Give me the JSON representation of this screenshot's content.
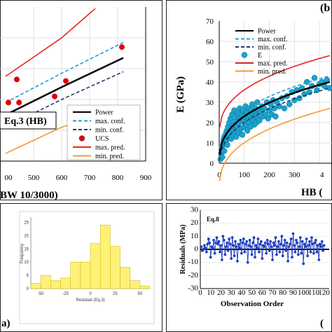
{
  "chart_data": [
    {
      "type": "scatter",
      "panel": "top-left",
      "xlabel": "BW 10/3000)",
      "xticks": [
        "00",
        "500",
        "600",
        "700",
        "800",
        "900"
      ],
      "xlim": [
        400,
        900
      ],
      "ylim": [
        0,
        100
      ],
      "label_box": "Eq.3 (HB)",
      "legend": [
        "Power",
        "max. conf.",
        "min. conf.",
        "UCS",
        "max. pred.",
        "min. pred."
      ],
      "points": [
        {
          "x": 410,
          "y": 38
        },
        {
          "x": 440,
          "y": 53
        },
        {
          "x": 448,
          "y": 38
        },
        {
          "x": 575,
          "y": 42
        },
        {
          "x": 615,
          "y": 52
        },
        {
          "x": 815,
          "y": 74
        }
      ],
      "series": [
        {
          "name": "Power",
          "color": "#000000",
          "style": "solid",
          "x": [
            400,
            600,
            820
          ],
          "y": [
            30,
            48,
            67
          ]
        },
        {
          "name": "max. conf.",
          "color": "#1f9bd7",
          "style": "dashed",
          "x": [
            400,
            600,
            820
          ],
          "y": [
            38,
            57,
            77
          ]
        },
        {
          "name": "min. conf.",
          "color": "#1f3b73",
          "style": "dashed",
          "x": [
            400,
            600,
            820
          ],
          "y": [
            22,
            40,
            58
          ]
        },
        {
          "name": "max. pred.",
          "color": "#e52323",
          "style": "solid",
          "x": [
            400,
            600,
            720
          ],
          "y": [
            55,
            80,
            99
          ]
        },
        {
          "name": "min. pred.",
          "color": "#f29a35",
          "style": "solid",
          "x": [
            400,
            600,
            820
          ],
          "y": [
            5,
            22,
            36
          ]
        }
      ]
    },
    {
      "type": "scatter",
      "panel": "top-right",
      "title": "(b",
      "xlabel": "HB (",
      "ylabel": "E (GPa)",
      "xticks": [
        "0",
        "100",
        "200",
        "300",
        "4"
      ],
      "yticks": [
        "0",
        "10",
        "20",
        "30",
        "40",
        "50",
        "60",
        "70"
      ],
      "xlim": [
        0,
        450
      ],
      "ylim": [
        0,
        70
      ],
      "legend": [
        "Power",
        "max. conf.",
        "min. conf.",
        "E",
        "max. pred.",
        "min. pred."
      ],
      "series": [
        {
          "name": "Power",
          "color": "#000000",
          "style": "solid"
        },
        {
          "name": "max. conf.",
          "color": "#1f9bd7",
          "style": "dashed"
        },
        {
          "name": "min. conf.",
          "color": "#1f3b73",
          "style": "dashed"
        },
        {
          "name": "max. pred.",
          "color": "#e52323",
          "style": "solid"
        },
        {
          "name": "min. pred.",
          "color": "#f29a35",
          "style": "solid"
        }
      ],
      "points": [
        {
          "x": 5,
          "y": 2
        },
        {
          "x": 8,
          "y": 5
        },
        {
          "x": 10,
          "y": 8
        },
        {
          "x": 12,
          "y": 3
        },
        {
          "x": 15,
          "y": 9
        },
        {
          "x": 18,
          "y": 12
        },
        {
          "x": 20,
          "y": 6
        },
        {
          "x": 22,
          "y": 10
        },
        {
          "x": 25,
          "y": 14
        },
        {
          "x": 28,
          "y": 11
        },
        {
          "x": 30,
          "y": 16
        },
        {
          "x": 32,
          "y": 9
        },
        {
          "x": 35,
          "y": 18
        },
        {
          "x": 38,
          "y": 13
        },
        {
          "x": 40,
          "y": 20
        },
        {
          "x": 42,
          "y": 15
        },
        {
          "x": 45,
          "y": 22
        },
        {
          "x": 48,
          "y": 12
        },
        {
          "x": 50,
          "y": 17
        },
        {
          "x": 52,
          "y": 24
        },
        {
          "x": 55,
          "y": 14
        },
        {
          "x": 58,
          "y": 19
        },
        {
          "x": 60,
          "y": 26
        },
        {
          "x": 62,
          "y": 16
        },
        {
          "x": 65,
          "y": 21
        },
        {
          "x": 68,
          "y": 13
        },
        {
          "x": 70,
          "y": 23
        },
        {
          "x": 72,
          "y": 18
        },
        {
          "x": 75,
          "y": 25
        },
        {
          "x": 78,
          "y": 15
        },
        {
          "x": 80,
          "y": 20
        },
        {
          "x": 82,
          "y": 27
        },
        {
          "x": 85,
          "y": 22
        },
        {
          "x": 88,
          "y": 17
        },
        {
          "x": 90,
          "y": 24
        },
        {
          "x": 92,
          "y": 14
        },
        {
          "x": 95,
          "y": 26
        },
        {
          "x": 98,
          "y": 21
        },
        {
          "x": 100,
          "y": 18
        },
        {
          "x": 102,
          "y": 23
        },
        {
          "x": 105,
          "y": 28
        },
        {
          "x": 108,
          "y": 19
        },
        {
          "x": 110,
          "y": 25
        },
        {
          "x": 112,
          "y": 16
        },
        {
          "x": 115,
          "y": 22
        },
        {
          "x": 118,
          "y": 27
        },
        {
          "x": 120,
          "y": 20
        },
        {
          "x": 122,
          "y": 24
        },
        {
          "x": 125,
          "y": 18
        },
        {
          "x": 128,
          "y": 26
        },
        {
          "x": 130,
          "y": 22
        },
        {
          "x": 132,
          "y": 29
        },
        {
          "x": 135,
          "y": 21
        },
        {
          "x": 138,
          "y": 25
        },
        {
          "x": 140,
          "y": 19
        },
        {
          "x": 142,
          "y": 23
        },
        {
          "x": 145,
          "y": 27
        },
        {
          "x": 148,
          "y": 20
        },
        {
          "x": 150,
          "y": 24
        },
        {
          "x": 152,
          "y": 30
        },
        {
          "x": 155,
          "y": 22
        },
        {
          "x": 158,
          "y": 26
        },
        {
          "x": 160,
          "y": 21
        },
        {
          "x": 165,
          "y": 25
        },
        {
          "x": 170,
          "y": 28
        },
        {
          "x": 175,
          "y": 23
        },
        {
          "x": 180,
          "y": 27
        },
        {
          "x": 185,
          "y": 24
        },
        {
          "x": 190,
          "y": 30
        },
        {
          "x": 195,
          "y": 22
        },
        {
          "x": 200,
          "y": 26
        },
        {
          "x": 205,
          "y": 29
        },
        {
          "x": 210,
          "y": 24
        },
        {
          "x": 215,
          "y": 31
        },
        {
          "x": 220,
          "y": 27
        },
        {
          "x": 225,
          "y": 23
        },
        {
          "x": 230,
          "y": 30
        },
        {
          "x": 240,
          "y": 28
        },
        {
          "x": 250,
          "y": 32
        },
        {
          "x": 260,
          "y": 27
        },
        {
          "x": 270,
          "y": 33
        },
        {
          "x": 280,
          "y": 29
        },
        {
          "x": 290,
          "y": 35
        },
        {
          "x": 300,
          "y": 31
        },
        {
          "x": 310,
          "y": 36
        },
        {
          "x": 320,
          "y": 32
        },
        {
          "x": 330,
          "y": 37
        },
        {
          "x": 340,
          "y": 34
        },
        {
          "x": 350,
          "y": 40
        },
        {
          "x": 360,
          "y": 35
        },
        {
          "x": 370,
          "y": 38
        },
        {
          "x": 380,
          "y": 42
        },
        {
          "x": 390,
          "y": 36
        },
        {
          "x": 400,
          "y": 39
        },
        {
          "x": 410,
          "y": 40
        },
        {
          "x": 420,
          "y": 38
        },
        {
          "x": 430,
          "y": 41
        },
        {
          "x": 440,
          "y": 37
        }
      ]
    },
    {
      "type": "bar",
      "panel": "bottom-left",
      "title": "a)",
      "xlabel": "Residual (Eq.3)",
      "ylabel": "Frequency",
      "xticks": [
        "-50",
        "-25",
        "0",
        "25",
        "50"
      ],
      "yticks": [
        "0",
        "5",
        "10",
        "15",
        "20",
        "25"
      ],
      "bin_edges": [
        -60,
        -50,
        -40,
        -30,
        -20,
        -10,
        0,
        10,
        20,
        30,
        40,
        50,
        60
      ],
      "values": [
        2,
        5,
        3,
        4,
        10,
        10,
        17,
        24,
        16,
        8,
        3,
        1
      ],
      "ylim": [
        0,
        27
      ]
    },
    {
      "type": "line",
      "panel": "bottom-right",
      "title": "Eq.8",
      "xlabel": "Observation Order",
      "ylabel": "Residuals (MPa)",
      "xticks": [
        "0",
        "10",
        "20",
        "30",
        "40",
        "50",
        "60",
        "70",
        "80",
        "90",
        "100",
        "110",
        "120"
      ],
      "yticks": [
        "-30",
        "-20",
        "-10",
        "0",
        "10",
        "20",
        "30"
      ],
      "ylim": [
        -30,
        30
      ],
      "xlim": [
        0,
        125
      ],
      "values": [
        2,
        -1,
        0,
        3,
        1,
        -2,
        4,
        8,
        5,
        -6,
        2,
        1,
        7,
        -3,
        5,
        9,
        4,
        6,
        -2,
        3,
        -8,
        10,
        7,
        -4,
        2,
        5,
        -1,
        8,
        4,
        -7,
        9,
        3,
        -5,
        6,
        2,
        -9,
        4,
        1,
        7,
        -3,
        5,
        8,
        -2,
        4,
        6,
        -10,
        3,
        7,
        2,
        -4,
        5,
        9,
        -6,
        3,
        1,
        8,
        -2,
        4,
        6,
        -7,
        3,
        2,
        5,
        -3,
        7,
        4,
        -1,
        6,
        2,
        -8,
        5,
        3,
        9,
        -4,
        2,
        6,
        -2,
        4,
        10,
        -5,
        3,
        7,
        -1,
        5,
        -9,
        2,
        4,
        8,
        -6,
        12,
        3,
        -2,
        7,
        5,
        -4,
        2,
        9,
        -3,
        6,
        -11,
        4,
        2,
        8,
        -5,
        3,
        6,
        -2,
        9,
        4,
        -3,
        5,
        7,
        -2,
        3,
        -8,
        4,
        2,
        6,
        -1,
        3
      ]
    }
  ],
  "colors": {
    "points_top_left": "#e00000",
    "points_top_right": "#1aa3cc",
    "histogram_bar": "#fff176",
    "residual_line": "#1f3fbf"
  }
}
